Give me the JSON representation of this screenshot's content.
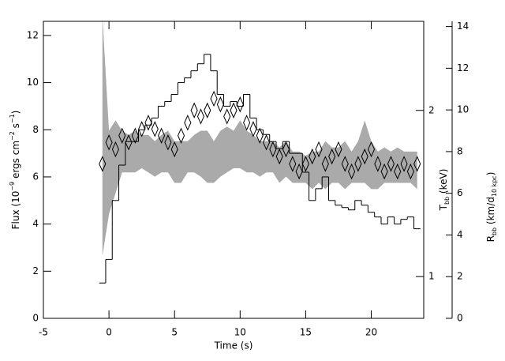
{
  "chart_data": {
    "type": "line",
    "x_label": "Time (s)",
    "y_label": [
      "Flux (10",
      "−9",
      " ergs cm",
      "−2",
      " s",
      "−1",
      ")"
    ],
    "y2_label": [
      "T",
      "bb",
      " (keV)"
    ],
    "y3_label": [
      "R",
      "bb",
      " (km/d",
      "10 kpc",
      ")"
    ],
    "xlim": [
      -5,
      24
    ],
    "xticks": [
      -5,
      0,
      5,
      10,
      15,
      20
    ],
    "ylim": [
      0,
      12.6
    ],
    "yticks": [
      0,
      2,
      4,
      6,
      8,
      10,
      12
    ],
    "y2lim": [
      0.84,
      2.9
    ],
    "y2ticks": [
      1,
      2
    ],
    "y2_log": true,
    "y3lim": [
      0,
      14.25
    ],
    "y3ticks": [
      0,
      2,
      4,
      6,
      8,
      10,
      12,
      14
    ],
    "x": [
      -0.5,
      0,
      0.5,
      1,
      1.5,
      2,
      2.5,
      3,
      3.5,
      4,
      4.5,
      5,
      5.5,
      6,
      6.5,
      7,
      7.5,
      8,
      8.5,
      9,
      9.5,
      10,
      10.5,
      11,
      11.5,
      12,
      12.5,
      13,
      13.5,
      14,
      14.5,
      15,
      15.5,
      16,
      16.5,
      17,
      17.5,
      18,
      18.5,
      19,
      19.5,
      20,
      20.5,
      21,
      21.5,
      22,
      22.5,
      23,
      23.5
    ],
    "series": [
      {
        "axis": "y",
        "style": "step",
        "color": "#000000",
        "values": [
          1.5,
          2.5,
          5,
          6.5,
          7.5,
          7.5,
          8,
          8.2,
          8.5,
          9,
          9.2,
          9.5,
          10,
          10.2,
          10.5,
          10.8,
          11.2,
          10.5,
          9.5,
          9,
          9.2,
          9,
          9.5,
          8.5,
          8,
          7.8,
          7.5,
          7.2,
          7.5,
          7,
          7,
          6.2,
          5,
          5.5,
          6,
          5,
          4.8,
          4.7,
          4.6,
          5,
          4.8,
          4.5,
          4.3,
          4,
          4.3,
          4,
          4.2,
          4.3,
          3.8
        ]
      },
      {
        "axis": "y2",
        "style": "diamond",
        "color": "#000000",
        "values": [
          1.6,
          1.75,
          1.7,
          1.8,
          1.75,
          1.8,
          1.85,
          1.9,
          1.85,
          1.8,
          1.75,
          1.7,
          1.8,
          1.9,
          2.0,
          1.95,
          2.0,
          2.1,
          2.05,
          1.95,
          2.0,
          2.05,
          1.9,
          1.85,
          1.8,
          1.75,
          1.7,
          1.65,
          1.7,
          1.6,
          1.55,
          1.6,
          1.65,
          1.7,
          1.6,
          1.65,
          1.7,
          1.6,
          1.55,
          1.6,
          1.65,
          1.7,
          1.6,
          1.55,
          1.6,
          1.55,
          1.6,
          1.55,
          1.6
        ]
      },
      {
        "axis": "y3",
        "style": "band",
        "color": "#aaaaaa",
        "lower": [
          3,
          5,
          6,
          7,
          7,
          7,
          7.2,
          7,
          6.8,
          7,
          7,
          6.5,
          6.5,
          7,
          7,
          6.8,
          6.5,
          6.5,
          6.8,
          7,
          7.2,
          7.2,
          7,
          7,
          6.8,
          7,
          7,
          6.5,
          6.8,
          6.5,
          6.5,
          6.5,
          6.2,
          6.5,
          6.2,
          6.5,
          6.5,
          6.2,
          6.5,
          6.5,
          6.5,
          6.2,
          6.2,
          6.5,
          6.5,
          6.5,
          6.5,
          6.5,
          6.2
        ],
        "upper": [
          14.5,
          9,
          9.5,
          9,
          8.8,
          9,
          8.8,
          8.8,
          8.5,
          8.8,
          9,
          8.5,
          8.5,
          8.5,
          8.8,
          9,
          9,
          8.5,
          9,
          9.2,
          9,
          9.5,
          9,
          8.8,
          8.5,
          8.5,
          8.5,
          8.2,
          8.5,
          8,
          8,
          7.8,
          8,
          8,
          8.5,
          8.2,
          8.2,
          8.5,
          8,
          8.5,
          9.5,
          8.5,
          8,
          8.2,
          8,
          8.2,
          8,
          8,
          8
        ]
      }
    ]
  }
}
